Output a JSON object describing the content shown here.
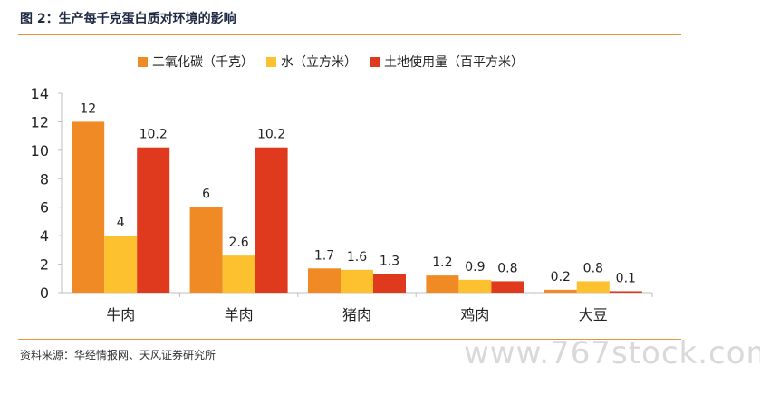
{
  "header": {
    "title": "图 2：生产每千克蛋白质对环境的影响"
  },
  "footer": {
    "source": "资料来源：华经情报网、天风证券研究所"
  },
  "watermark": "www.767stock.com",
  "chart_data": {
    "type": "bar",
    "categories": [
      "牛肉",
      "羊肉",
      "猪肉",
      "鸡肉",
      "大豆"
    ],
    "series": [
      {
        "name": "二氧化碳（千克）",
        "color": "#f08a24",
        "values": [
          12,
          6,
          1.7,
          1.2,
          0.2
        ],
        "labels": [
          "12",
          "6",
          "1.7",
          "1.2",
          "0.2"
        ]
      },
      {
        "name": "水（立方米）",
        "color": "#fdc02f",
        "values": [
          4,
          2.6,
          1.6,
          0.9,
          0.8
        ],
        "labels": [
          "4",
          "2.6",
          "1.6",
          "0.9",
          "0.8"
        ]
      },
      {
        "name": "土地使用量（百平方米）",
        "color": "#e03a1e",
        "values": [
          10.2,
          10.2,
          1.3,
          0.8,
          0.1
        ],
        "labels": [
          "10.2",
          "10.2",
          "1.3",
          "0.8",
          "0.1"
        ]
      }
    ],
    "ylim": [
      0,
      14
    ],
    "yticks": [
      0,
      2,
      4,
      6,
      8,
      10,
      12,
      14
    ],
    "ytick_labels": [
      "0",
      "2",
      "4",
      "6",
      "8",
      "10",
      "12",
      "14"
    ],
    "grid": false,
    "legend_position": "top-center"
  }
}
